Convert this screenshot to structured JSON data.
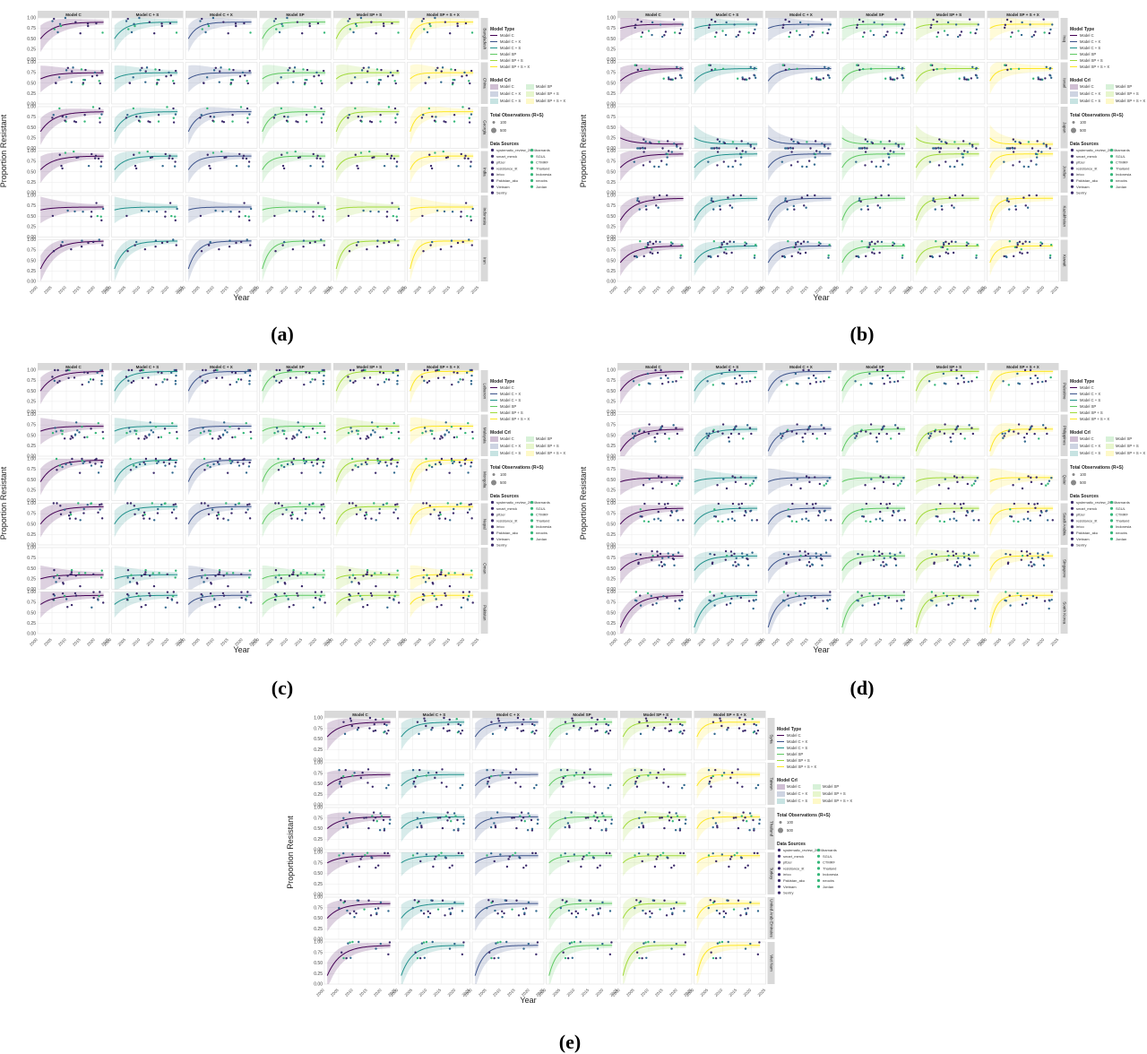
{
  "strip_titles": [
    "Model C",
    "Model C + S",
    "Model C + X",
    "Model SP",
    "Model SP + S",
    "Model SP + S + X"
  ],
  "y_axis_label": "Proportion Resistant",
  "x_axis_label": "Year",
  "y_ticks": [
    "0.00",
    "0.25",
    "0.50",
    "0.75",
    "1.00"
  ],
  "x_ticks": [
    "2000",
    "2005",
    "2010",
    "2015",
    "2020",
    "2025"
  ],
  "legend": {
    "model_type_title": "Model Type",
    "model_type_items": [
      "Model C",
      "Model C + X",
      "Model C + S",
      "Model SP",
      "Model SP + S",
      "Model SP + S + X"
    ],
    "model_cri_title": "Model CrI",
    "model_cri_items": [
      "Model C",
      "Model SP",
      "Model C + X",
      "Model SP + S",
      "Model C + S",
      "Model SP + S + X"
    ],
    "total_obs_title": "Total Observations (R+S)",
    "total_obs_items": [
      "100",
      "500"
    ],
    "data_sources_title": "Data Sources",
    "data_sources_items": [
      "systematic_review_2024",
      "barnards",
      "smart_merck",
      "SGUL",
      "pfizer",
      "CTMRF",
      "resistance_lit",
      "Thailand",
      "irrico",
      "Indonesia",
      "Pakistan_aku",
      "neocbs",
      "Vietnam",
      "Jordan",
      "Sentry"
    ]
  },
  "colors": {
    "Model C": "#440154",
    "Model C + X": "#3b528b",
    "Model C + S": "#21918c",
    "Model SP": "#5ec962",
    "Model SP + S": "#a0da39",
    "Model SP + S + X": "#fde725",
    "strip": "#d9d9d9",
    "panel": "#ffffff",
    "grid": "#ebebeb"
  },
  "chart_data": [
    {
      "type": "line",
      "panel": "(a)",
      "rows": [
        "Bangladesh",
        "China",
        "Georgia",
        "India",
        "Indonesia",
        "Iran"
      ],
      "columns": [
        "Model C",
        "Model C + S",
        "Model C + X",
        "Model SP",
        "Model SP + S",
        "Model SP + S + X"
      ],
      "xlim": [
        2000,
        2025
      ],
      "ylim": [
        0,
        1
      ],
      "curves": {
        "Bangladesh": [
          0.5,
          0.9
        ],
        "China": [
          0.6,
          0.75
        ],
        "Georgia": [
          0.4,
          0.88
        ],
        "India": [
          0.55,
          0.88
        ],
        "Indonesia": [
          0.65,
          0.72
        ],
        "Iran": [
          0.3,
          0.97
        ]
      }
    },
    {
      "type": "line",
      "panel": "(b)",
      "rows": [
        "Iraq",
        "Israel",
        "Japan",
        "Jordan",
        "Kazakhstan",
        "Kuwait"
      ],
      "columns": [
        "Model C",
        "Model C + S",
        "Model C + X",
        "Model SP",
        "Model SP + S",
        "Model SP + S + X"
      ],
      "xlim": [
        2000,
        2025
      ],
      "ylim": [
        0,
        1
      ],
      "curves": {
        "Iraq": [
          0.75,
          0.85
        ],
        "Israel": [
          0.55,
          0.85
        ],
        "Japan": [
          0.25,
          0.1
        ],
        "Jordan": [
          0.6,
          0.93
        ],
        "Kazakhstan": [
          0.4,
          0.93
        ],
        "Kuwait": [
          0.45,
          0.85
        ]
      }
    },
    {
      "type": "line",
      "panel": "(c)",
      "rows": [
        "Lebanon",
        "Malaysia",
        "Mongolia",
        "Nepal",
        "Oman",
        "Pakistan"
      ],
      "columns": [
        "Model C",
        "Model C + S",
        "Model C + X",
        "Model SP",
        "Model SP + S",
        "Model SP + S + X"
      ],
      "xlim": [
        2000,
        2025
      ],
      "ylim": [
        0,
        1
      ],
      "curves": {
        "Lebanon": [
          0.5,
          0.97
        ],
        "Malaysia": [
          0.6,
          0.72
        ],
        "Mongolia": [
          0.45,
          0.97
        ],
        "Nepal": [
          0.5,
          0.92
        ],
        "Oman": [
          0.25,
          0.35
        ],
        "Pakistan": [
          0.7,
          0.92
        ]
      }
    },
    {
      "type": "line",
      "panel": "(d)",
      "rows": [
        "Palestine",
        "Philippines",
        "Qatar",
        "Saudi Arabia",
        "Singapore",
        "South Korea"
      ],
      "columns": [
        "Model C",
        "Model C + S",
        "Model C + X",
        "Model SP",
        "Model SP + S",
        "Model SP + S + X"
      ],
      "xlim": [
        2000,
        2025
      ],
      "ylim": [
        0,
        1
      ],
      "curves": {
        "Palestine": [
          0.5,
          0.97
        ],
        "Philippines": [
          0.12,
          0.65
        ],
        "Qatar": [
          0.45,
          0.55
        ],
        "Saudi Arabia": [
          0.5,
          0.88
        ],
        "Singapore": [
          0.45,
          0.8
        ],
        "South Korea": [
          0.15,
          0.92
        ]
      }
    },
    {
      "type": "line",
      "panel": "(e)",
      "rows": [
        "Syria",
        "Taiwan",
        "Thailand",
        "Turkey",
        "United Arab Emirates",
        "Viet Nam"
      ],
      "columns": [
        "Model C",
        "Model C + S",
        "Model C + X",
        "Model SP",
        "Model SP + S",
        "Model SP + S + X"
      ],
      "xlim": [
        2000,
        2025
      ],
      "ylim": [
        0,
        1
      ],
      "curves": {
        "Syria": [
          0.55,
          0.9
        ],
        "Taiwan": [
          0.45,
          0.72
        ],
        "Thailand": [
          0.5,
          0.78
        ],
        "Turkey": [
          0.75,
          0.92
        ],
        "United Arab Emirates": [
          0.5,
          0.85
        ],
        "Viet Nam": [
          0.2,
          0.92
        ]
      }
    }
  ],
  "captions": [
    "(a)",
    "(b)",
    "(c)",
    "(d)",
    "(e)"
  ]
}
